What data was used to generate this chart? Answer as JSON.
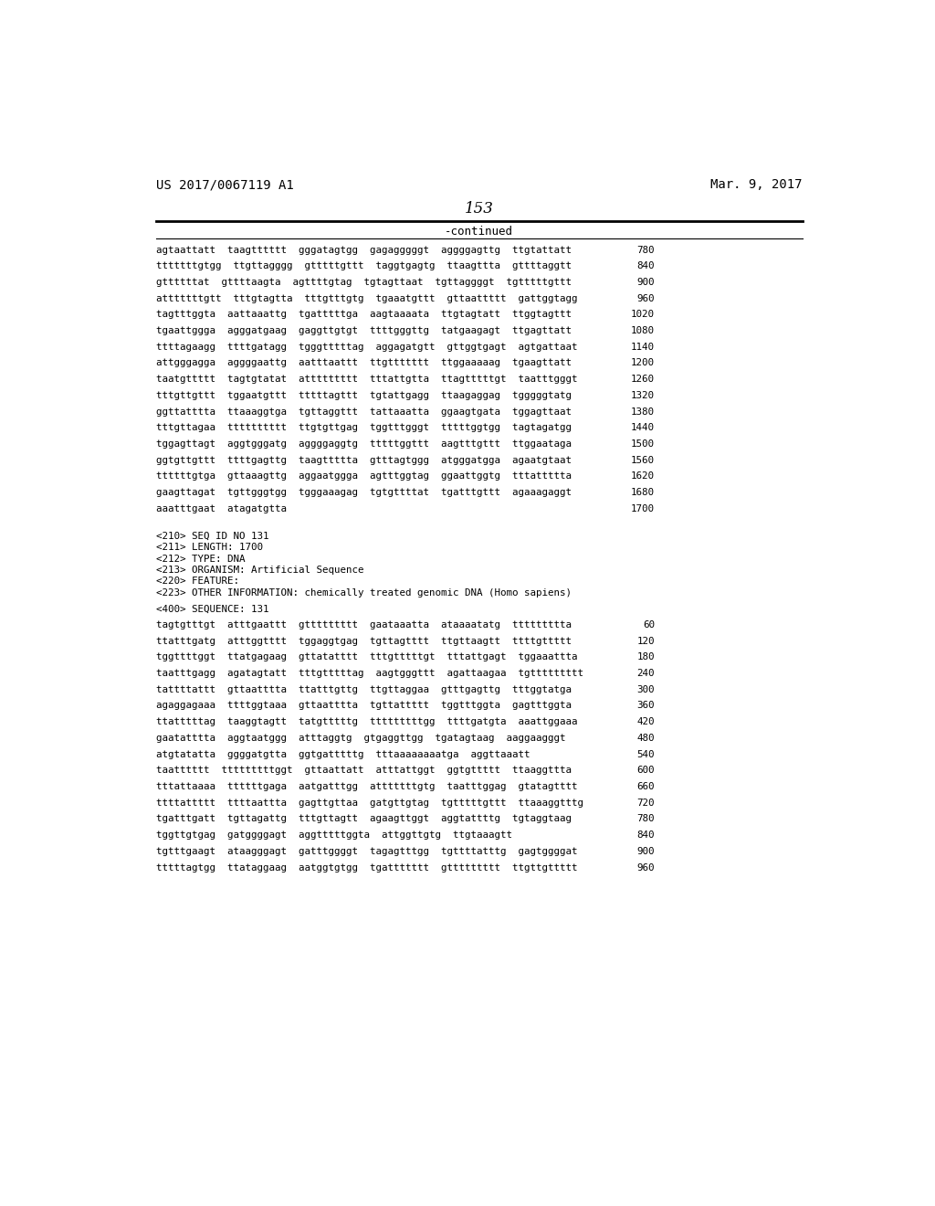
{
  "header_left": "US 2017/0067119 A1",
  "header_right": "Mar. 9, 2017",
  "page_number": "153",
  "continued_label": "-continued",
  "background_color": "#ffffff",
  "text_color": "#000000",
  "sequence_lines_top": [
    [
      "agtaattatt  taagtttttt  gggatagtgg  gagagggggt  aggggagttg  ttgtattatt",
      "780"
    ],
    [
      "tttttttgtgg  ttgttagggg  gtttttgttt  taggtgagtg  ttaagttta  gttttaggtt",
      "840"
    ],
    [
      "gttttttat  gttttaagta  agttttgtag  tgtagttaat  tgttaggggt  tgtttttgttt",
      "900"
    ],
    [
      "atttttttgtt  tttgtagtta  tttgtttgtg  tgaaatgttt  gttaattttt  gattggtagg",
      "960"
    ],
    [
      "tagtttggta  aattaaattg  tgatttttga  aagtaaaata  ttgtagtatt  ttggtagttt",
      "1020"
    ],
    [
      "tgaattggga  agggatgaag  gaggttgtgt  ttttgggttg  tatgaagagt  ttgagttatt",
      "1080"
    ],
    [
      "ttttagaagg  ttttgatagg  tgggtttttag  aggagatgtt  gttggtgagt  agtgattaat",
      "1140"
    ],
    [
      "attgggagga  aggggaattg  aatttaattt  ttgttttttt  ttggaaaaag  tgaagttatt",
      "1200"
    ],
    [
      "taatgttttt  tagtgtatat  attttttttt  tttattgtta  ttagtttttgt  taatttgggt",
      "1260"
    ],
    [
      "tttgttgttt  tggaatgttt  tttttagttt  tgtattgagg  ttaagaggag  tgggggtatg",
      "1320"
    ],
    [
      "ggttatttta  ttaaaggtga  tgttaggttt  tattaaatta  ggaagtgata  tggagttaat",
      "1380"
    ],
    [
      "tttgttagaa  tttttttttt  ttgtgttgag  tggtttgggt  tttttggtgg  tagtagatgg",
      "1440"
    ],
    [
      "tggagttagt  aggtgggatg  aggggaggtg  tttttggttt  aagtttgttt  ttggaataga",
      "1500"
    ],
    [
      "ggtgttgttt  ttttgagttg  taagttttta  gtttagtggg  atgggatgga  agaatgtaat",
      "1560"
    ],
    [
      "ttttttgtga  gttaaagttg  aggaatggga  agtttggtag  ggaattggtg  tttattttta",
      "1620"
    ],
    [
      "gaagttagat  tgttgggtgg  tgggaaagag  tgtgttttat  tgatttgttt  agaaagaggt",
      "1680"
    ],
    [
      "aaatttgaat  atagatgtta",
      "1700"
    ]
  ],
  "metadata_lines": [
    "<210> SEQ ID NO 131",
    "<211> LENGTH: 1700",
    "<212> TYPE: DNA",
    "<213> ORGANISM: Artificial Sequence",
    "<220> FEATURE:",
    "<223> OTHER INFORMATION: chemically treated genomic DNA (Homo sapiens)"
  ],
  "sequence_label": "<400> SEQUENCE: 131",
  "sequence_lines_bottom": [
    [
      "tagtgtttgt  atttgaattt  gttttttttt  gaataaatta  ataaaatatg  ttttttttta",
      "60"
    ],
    [
      "ttatttgatg  atttggtttt  tggaggtgag  tgttagtttt  ttgttaagtt  ttttgttttt",
      "120"
    ],
    [
      "tggttttggt  ttatgagaag  gttatatttt  tttgtttttgt  tttattgagt  tggaaattta",
      "180"
    ],
    [
      "taatttgagg  agatagtatt  tttgtttttag  aagtgggttt  agattaagaa  tgttttttttt",
      "240"
    ],
    [
      "tattttattt  gttaatttta  ttatttgttg  ttgttaggaa  gtttgagttg  tttggtatga",
      "300"
    ],
    [
      "agaggagaaa  ttttggtaaa  gttaatttta  tgttattttt  tggtttggta  gagtttggta",
      "360"
    ],
    [
      "ttatttttag  taaggtagtt  tatgtttttg  tttttttttgg  ttttgatgta  aaattggaaa",
      "420"
    ],
    [
      "gaatatttta  aggtaatggg  atttaggtg  gtgaggttgg  tgatagtaag  aaggaagggt",
      "480"
    ],
    [
      "atgtatatta  ggggatgtta  ggtgatttttg  tttaaaaaaaatga  aggttaaatt",
      "540"
    ],
    [
      "taatttttt  tttttttttggt  gttaattatt  atttattggt  ggtgttttt  ttaaggttta",
      "600"
    ],
    [
      "tttattaaaa  ttttttgaga  aatgatttgg  atttttttgtg  taatttggag  gtatagtttt",
      "660"
    ],
    [
      "ttttattttt  ttttaattta  gagttgttaa  gatgttgtag  tgtttttgttt  ttaaaggtttg",
      "720"
    ],
    [
      "tgatttgatt  tgttagattg  tttgttagtt  agaagttggt  aggtattttg  tgtaggtaag",
      "780"
    ],
    [
      "tggttgtgag  gatggggagt  aggtttttggta  attggttgtg  ttgtaaagtt",
      "840"
    ],
    [
      "tgtttgaagt  ataagggagt  gatttggggt  tagagtttgg  tgttttatttg  gagtggggat",
      "900"
    ],
    [
      "tttttagtgg  ttataggaag  aatggtgtgg  tgattttttt  gttttttttt  ttgttgttttt",
      "960"
    ]
  ]
}
